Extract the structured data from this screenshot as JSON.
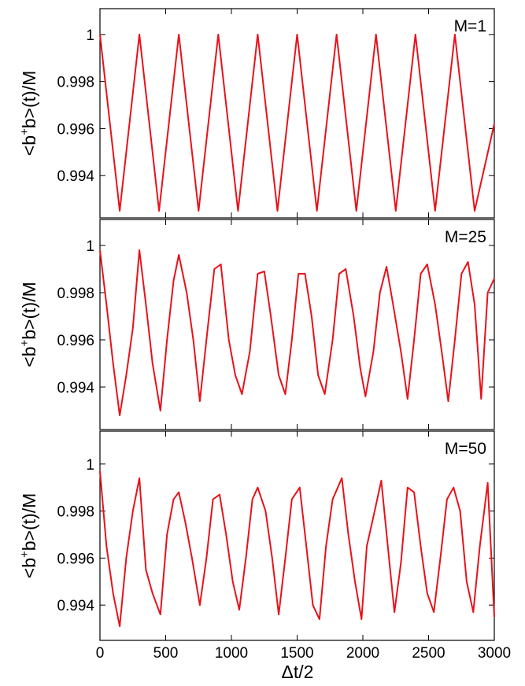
{
  "chart_data": {
    "type": "line",
    "x_axis": {
      "label": "Δt/2",
      "range": [
        0,
        3000
      ],
      "ticks": [
        0,
        500,
        1000,
        1500,
        2000,
        2500,
        3000
      ],
      "tick_labels": [
        "0",
        "500",
        "1000",
        "1500",
        "2000",
        "2500",
        "3000"
      ]
    },
    "color": "#e8121a",
    "panels": [
      {
        "label": "M=1",
        "ylabel": "<b+b>(t)/M",
        "ylim": [
          0.9922,
          1.0011
        ],
        "y_ticks": [
          0.994,
          0.996,
          0.998,
          1
        ],
        "y_tick_labels": [
          "0.994",
          "0.996",
          "0.998",
          "1"
        ],
        "series": [
          {
            "x": [
              0,
              150,
              300,
              450,
              600,
              750,
              900,
              1050,
              1200,
              1350,
              1500,
              1650,
              1800,
              1950,
              2100,
              2250,
              2400,
              2550,
              2700,
              2850,
              3000
            ],
            "y": [
              1.0,
              0.9925,
              1.0,
              0.9925,
              1.0,
              0.9925,
              1.0,
              0.9925,
              1.0,
              0.9925,
              1.0,
              0.9925,
              1.0,
              0.9925,
              1.0,
              0.9925,
              1.0,
              0.9925,
              1.0,
              0.9925,
              0.9962
            ]
          }
        ]
      },
      {
        "label": "M=25",
        "ylabel": "<b+b>(t)/M",
        "ylim": [
          0.9922,
          1.0011
        ],
        "y_ticks": [
          0.994,
          0.996,
          0.998,
          1
        ],
        "y_tick_labels": [
          "0.994",
          "0.996",
          "0.998",
          "1"
        ],
        "series": [
          {
            "x": [
              0,
              50,
              100,
              150,
              200,
              250,
              300,
              350,
              400,
              460,
              510,
              560,
              600,
              660,
              710,
              760,
              820,
              870,
              920,
              980,
              1030,
              1080,
              1140,
              1200,
              1250,
              1300,
              1360,
              1410,
              1460,
              1510,
              1560,
              1610,
              1660,
              1710,
              1770,
              1820,
              1870,
              1930,
              1980,
              2020,
              2080,
              2130,
              2180,
              2230,
              2290,
              2340,
              2390,
              2440,
              2490,
              2550,
              2600,
              2650,
              2700,
              2750,
              2800,
              2850,
              2900,
              2950,
              3000
            ],
            "y": [
              0.9998,
              0.9975,
              0.995,
              0.9928,
              0.9945,
              0.9965,
              0.9998,
              0.9975,
              0.995,
              0.993,
              0.996,
              0.9985,
              0.9996,
              0.998,
              0.996,
              0.9934,
              0.9965,
              0.999,
              0.9992,
              0.996,
              0.9945,
              0.9937,
              0.9955,
              0.9988,
              0.9989,
              0.997,
              0.9945,
              0.9937,
              0.996,
              0.9988,
              0.9988,
              0.997,
              0.9945,
              0.9937,
              0.996,
              0.9988,
              0.999,
              0.997,
              0.9948,
              0.9936,
              0.9955,
              0.998,
              0.9991,
              0.9975,
              0.9955,
              0.9935,
              0.996,
              0.9988,
              0.9992,
              0.9975,
              0.9955,
              0.9934,
              0.996,
              0.9988,
              0.9993,
              0.9975,
              0.9935,
              0.998,
              0.9986
            ]
          }
        ]
      },
      {
        "label": "M=50",
        "ylabel": "<b+b>(t)/M",
        "ylim": [
          0.9925,
          1.0014
        ],
        "y_ticks": [
          0.994,
          0.996,
          0.998,
          1
        ],
        "y_tick_labels": [
          "0.994",
          "0.996",
          "0.998",
          "1"
        ],
        "series": [
          {
            "x": [
              0,
              50,
              100,
              150,
              200,
              250,
              300,
              350,
              400,
              460,
              510,
              560,
              600,
              650,
              700,
              760,
              810,
              860,
              910,
              960,
              1010,
              1060,
              1110,
              1160,
              1200,
              1260,
              1310,
              1360,
              1410,
              1460,
              1520,
              1570,
              1620,
              1670,
              1720,
              1770,
              1840,
              1890,
              1940,
              1990,
              2030,
              2090,
              2140,
              2190,
              2240,
              2290,
              2340,
              2390,
              2440,
              2490,
              2540,
              2590,
              2640,
              2690,
              2740,
              2790,
              2840,
              2890,
              2950,
              3000
            ],
            "y": [
              0.9997,
              0.9965,
              0.9945,
              0.9931,
              0.996,
              0.998,
              0.9994,
              0.9955,
              0.9945,
              0.9936,
              0.997,
              0.9985,
              0.9988,
              0.9975,
              0.996,
              0.994,
              0.996,
              0.9985,
              0.9987,
              0.997,
              0.995,
              0.9938,
              0.996,
              0.9985,
              0.999,
              0.998,
              0.996,
              0.9936,
              0.996,
              0.9985,
              0.999,
              0.9965,
              0.994,
              0.9934,
              0.9965,
              0.9985,
              0.9994,
              0.997,
              0.995,
              0.9934,
              0.9965,
              0.998,
              0.9993,
              0.9965,
              0.9937,
              0.9958,
              0.999,
              0.9988,
              0.9965,
              0.9945,
              0.9937,
              0.996,
              0.9985,
              0.999,
              0.998,
              0.995,
              0.9937,
              0.9965,
              0.9992,
              0.9935
            ]
          }
        ]
      }
    ]
  }
}
